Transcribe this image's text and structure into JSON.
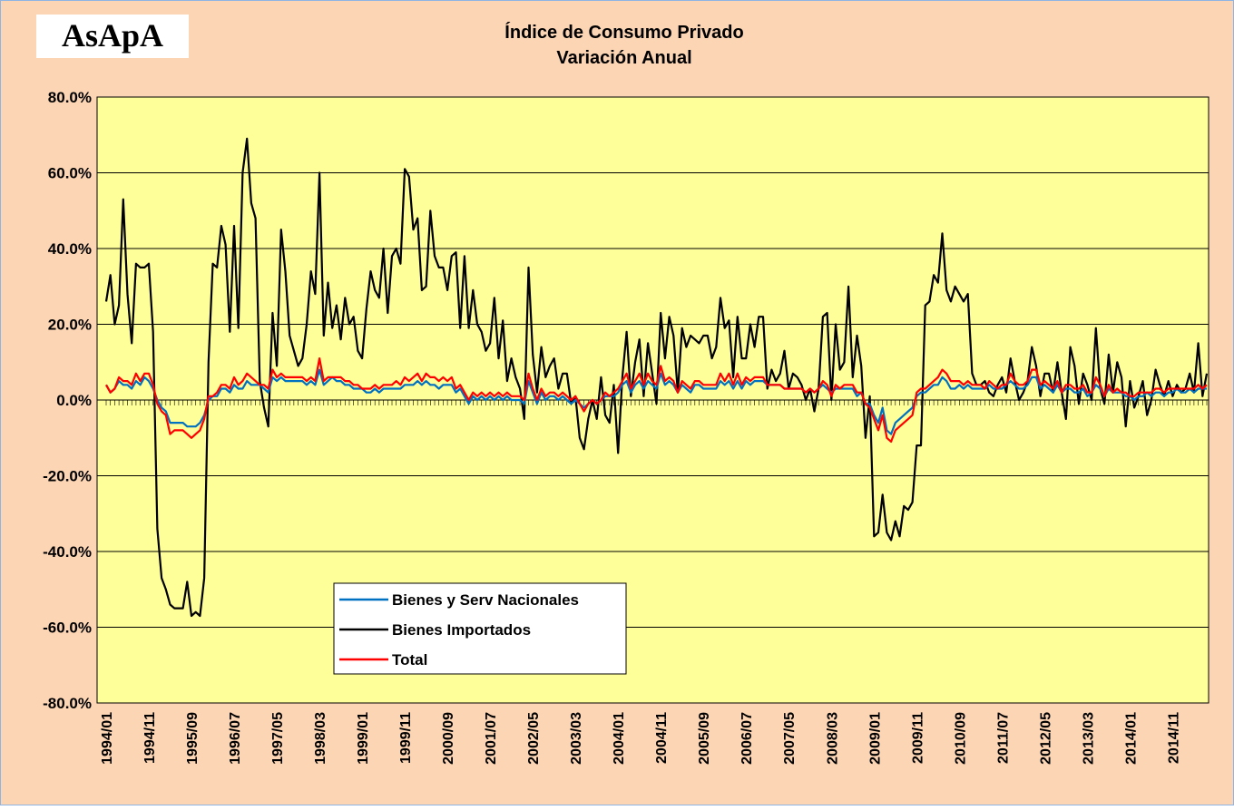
{
  "logo": "AsApA",
  "chart_data": {
    "type": "line",
    "title": "Índice de Consumo Privado",
    "subtitle": "Variación Anual",
    "ylim": [
      -80,
      80
    ],
    "yticks": [
      {
        "value": -80,
        "label": "-80.0%"
      },
      {
        "value": -60,
        "label": "-60.0%"
      },
      {
        "value": -40,
        "label": "-40.0%"
      },
      {
        "value": -20,
        "label": "-20.0%"
      },
      {
        "value": 0,
        "label": "0.0%"
      },
      {
        "value": 20,
        "label": "20.0%"
      },
      {
        "value": 40,
        "label": "40.0%"
      },
      {
        "value": 60,
        "label": "60.0%"
      },
      {
        "value": 80,
        "label": "80.0%"
      }
    ],
    "grid": true,
    "legend": "lower-left",
    "categories": [
      "1994/01",
      null,
      null,
      null,
      null,
      null,
      null,
      null,
      null,
      null,
      "1994/11",
      null,
      null,
      null,
      null,
      null,
      null,
      null,
      null,
      null,
      "1995/09",
      null,
      null,
      null,
      null,
      null,
      null,
      null,
      null,
      null,
      "1996/07",
      null,
      null,
      null,
      null,
      null,
      null,
      null,
      null,
      null,
      "1997/05",
      null,
      null,
      null,
      null,
      null,
      null,
      null,
      null,
      null,
      "1998/03",
      null,
      null,
      null,
      null,
      null,
      null,
      null,
      null,
      null,
      "1999/01",
      null,
      null,
      null,
      null,
      null,
      null,
      null,
      null,
      null,
      "1999/11",
      null,
      null,
      null,
      null,
      null,
      null,
      null,
      null,
      null,
      "2000/09",
      null,
      null,
      null,
      null,
      null,
      null,
      null,
      null,
      null,
      "2001/07",
      null,
      null,
      null,
      null,
      null,
      null,
      null,
      null,
      null,
      "2002/05",
      null,
      null,
      null,
      null,
      null,
      null,
      null,
      null,
      null,
      "2003/03",
      null,
      null,
      null,
      null,
      null,
      null,
      null,
      null,
      null,
      "2004/01",
      null,
      null,
      null,
      null,
      null,
      null,
      null,
      null,
      null,
      "2004/11",
      null,
      null,
      null,
      null,
      null,
      null,
      null,
      null,
      null,
      "2005/09",
      null,
      null,
      null,
      null,
      null,
      null,
      null,
      null,
      null,
      "2006/07",
      null,
      null,
      null,
      null,
      null,
      null,
      null,
      null,
      null,
      "2007/05",
      null,
      null,
      null,
      null,
      null,
      null,
      null,
      null,
      null,
      "2008/03",
      null,
      null,
      null,
      null,
      null,
      null,
      null,
      null,
      null,
      "2009/01",
      null,
      null,
      null,
      null,
      null,
      null,
      null,
      null,
      null,
      "2009/11",
      null,
      null,
      null,
      null,
      null,
      null,
      null,
      null,
      null,
      "2010/09",
      null,
      null,
      null,
      null,
      null,
      null,
      null,
      null,
      null,
      "2011/07",
      null,
      null,
      null,
      null,
      null,
      null,
      null,
      null,
      null,
      "2012/05",
      null,
      null,
      null,
      null,
      null,
      null,
      null,
      null,
      null,
      "2013/03",
      null,
      null,
      null,
      null,
      null,
      null,
      null,
      null,
      null,
      "2014/01",
      null,
      null,
      null,
      null,
      null,
      null,
      null,
      null,
      null,
      "2014/11",
      null,
      null,
      null,
      null,
      null,
      null,
      null,
      null
    ],
    "series": [
      {
        "name": "Bienes Importados",
        "color": "#000000",
        "values": [
          26,
          33,
          20,
          25,
          53,
          28,
          15,
          36,
          35,
          35,
          36,
          18,
          -34,
          -47,
          -50,
          -54,
          -55,
          -55,
          -55,
          -48,
          -57,
          -56,
          -57,
          -47,
          10,
          36,
          35,
          46,
          41,
          18,
          46,
          19,
          60,
          69,
          52,
          48,
          5,
          -2,
          -7,
          23,
          9,
          45,
          34,
          17,
          13,
          9,
          11,
          20,
          34,
          28,
          60,
          17,
          31,
          19,
          25,
          16,
          27,
          20,
          22,
          13,
          11,
          24,
          34,
          29,
          27,
          40,
          23,
          38,
          40,
          36,
          61,
          59,
          45,
          48,
          29,
          30,
          50,
          38,
          35,
          35,
          29,
          38,
          39,
          19,
          38,
          19,
          29,
          20,
          18,
          13,
          15,
          27,
          11,
          21,
          5,
          11,
          6,
          3,
          -5,
          35,
          12,
          2,
          14,
          6,
          9,
          11,
          3,
          7,
          7,
          -1,
          1,
          -10,
          -13,
          -5,
          0,
          -5,
          6,
          -4,
          -6,
          4,
          -14,
          6,
          18,
          1,
          10,
          16,
          1,
          15,
          7,
          -1,
          23,
          11,
          22,
          17,
          2,
          19,
          14,
          17,
          16,
          15,
          17,
          17,
          11,
          14,
          27,
          19,
          21,
          6,
          22,
          11,
          11,
          20,
          14,
          22,
          22,
          3,
          8,
          5,
          7,
          13,
          3,
          7,
          6,
          4,
          0,
          3,
          -3,
          3,
          22,
          23,
          0,
          20,
          8,
          10,
          30,
          6,
          17,
          9,
          -10,
          1,
          -36,
          -35,
          -25,
          -35,
          -37,
          -32,
          -36,
          -28,
          -29,
          -27,
          -12,
          -12,
          25,
          26,
          33,
          31,
          44,
          29,
          26,
          30,
          28,
          26,
          28,
          7,
          4,
          4,
          5,
          2,
          1,
          4,
          6,
          2,
          11,
          5,
          0,
          2,
          5,
          14,
          9,
          1,
          7,
          7,
          2,
          10,
          2,
          -5,
          14,
          9,
          -1,
          7,
          4,
          0,
          19,
          3,
          -1,
          12,
          2,
          10,
          6,
          -7,
          5,
          -2,
          1,
          5,
          -4,
          0,
          8,
          4,
          1,
          5,
          1,
          4,
          2,
          3,
          7,
          2,
          15,
          1,
          7
        ]
      },
      {
        "name": "Bienes y Serv Nacionales",
        "color": "#0070c0",
        "values": [
          4,
          2,
          3,
          5,
          4,
          4,
          3,
          5,
          4,
          6,
          5,
          3,
          0,
          -2,
          -3,
          -6,
          -6,
          -6,
          -6,
          -7,
          -7,
          -7,
          -6,
          -4,
          0,
          1,
          1,
          3,
          3,
          2,
          4,
          3,
          3,
          5,
          4,
          4,
          4,
          3,
          2,
          6,
          5,
          6,
          5,
          5,
          5,
          5,
          5,
          4,
          5,
          4,
          8,
          4,
          5,
          6,
          5,
          5,
          4,
          4,
          3,
          3,
          3,
          2,
          2,
          3,
          2,
          3,
          3,
          3,
          3,
          3,
          4,
          4,
          4,
          5,
          4,
          5,
          4,
          4,
          3,
          4,
          4,
          4,
          2,
          3,
          1,
          -1,
          1,
          0,
          1,
          0,
          1,
          0,
          1,
          0,
          1,
          0,
          0,
          0,
          -1,
          5,
          2,
          -1,
          2,
          0,
          1,
          1,
          0,
          1,
          0,
          -1,
          0,
          -1,
          -2,
          -1,
          0,
          -1,
          0,
          1,
          1,
          1,
          2,
          4,
          5,
          2,
          4,
          5,
          3,
          5,
          4,
          3,
          7,
          4,
          5,
          4,
          2,
          4,
          3,
          2,
          4,
          4,
          3,
          3,
          3,
          3,
          5,
          4,
          5,
          3,
          5,
          3,
          5,
          4,
          5,
          5,
          5,
          4,
          4,
          4,
          4,
          3,
          3,
          3,
          3,
          3,
          2,
          3,
          2,
          3,
          4,
          3,
          2,
          3,
          3,
          3,
          3,
          3,
          1,
          2,
          -1,
          -1,
          -4,
          -6,
          -2,
          -8,
          -9,
          -6,
          -5,
          -4,
          -3,
          -2,
          1,
          2,
          2,
          3,
          4,
          4,
          6,
          5,
          3,
          3,
          4,
          3,
          4,
          3,
          3,
          3,
          3,
          4,
          3,
          3,
          3,
          4,
          5,
          4,
          3,
          3,
          4,
          6,
          6,
          3,
          4,
          3,
          2,
          4,
          2,
          3,
          3,
          2,
          2,
          3,
          1,
          2,
          4,
          3,
          1,
          3,
          2,
          2,
          2,
          1,
          1,
          0,
          1,
          1,
          2,
          1,
          2,
          2,
          1,
          2,
          2,
          3,
          2,
          2,
          3,
          2,
          3,
          3,
          3
        ]
      },
      {
        "name": "Total",
        "color": "#ff0000",
        "values": [
          4,
          2,
          3,
          6,
          5,
          5,
          4,
          7,
          5,
          7,
          7,
          4,
          -1,
          -3,
          -4,
          -9,
          -8,
          -8,
          -8,
          -9,
          -10,
          -9,
          -8,
          -5,
          1,
          1,
          2,
          4,
          4,
          3,
          6,
          4,
          5,
          7,
          6,
          5,
          4,
          4,
          3,
          8,
          6,
          7,
          6,
          6,
          6,
          6,
          6,
          5,
          6,
          5,
          11,
          5,
          6,
          6,
          6,
          6,
          5,
          5,
          4,
          4,
          3,
          3,
          3,
          4,
          3,
          4,
          4,
          4,
          5,
          4,
          6,
          5,
          6,
          7,
          5,
          7,
          6,
          6,
          5,
          6,
          5,
          6,
          3,
          4,
          2,
          0,
          2,
          1,
          2,
          1,
          2,
          1,
          2,
          1,
          2,
          1,
          1,
          1,
          0,
          7,
          3,
          0,
          3,
          1,
          2,
          2,
          1,
          2,
          1,
          0,
          1,
          -1,
          -3,
          -1,
          0,
          -1,
          0,
          2,
          1,
          2,
          3,
          5,
          7,
          3,
          5,
          7,
          4,
          7,
          5,
          4,
          9,
          5,
          6,
          5,
          2,
          5,
          4,
          3,
          5,
          5,
          4,
          4,
          4,
          4,
          7,
          5,
          7,
          4,
          7,
          4,
          6,
          5,
          6,
          6,
          6,
          4,
          4,
          4,
          4,
          3,
          3,
          3,
          3,
          3,
          2,
          3,
          2,
          3,
          5,
          4,
          1,
          4,
          3,
          4,
          4,
          4,
          2,
          2,
          -1,
          -2,
          -5,
          -8,
          -4,
          -10,
          -11,
          -8,
          -7,
          -6,
          -5,
          -4,
          2,
          3,
          3,
          4,
          5,
          6,
          8,
          7,
          5,
          5,
          5,
          4,
          5,
          4,
          4,
          4,
          3,
          5,
          4,
          3,
          4,
          4,
          7,
          5,
          4,
          4,
          5,
          8,
          8,
          4,
          5,
          4,
          3,
          5,
          2,
          4,
          4,
          3,
          3,
          4,
          2,
          2,
          6,
          4,
          1,
          4,
          2,
          3,
          2,
          2,
          1,
          1,
          2,
          2,
          2,
          2,
          3,
          3,
          2,
          3,
          3,
          3,
          3,
          3,
          3,
          3,
          4,
          3,
          4
        ]
      }
    ]
  }
}
